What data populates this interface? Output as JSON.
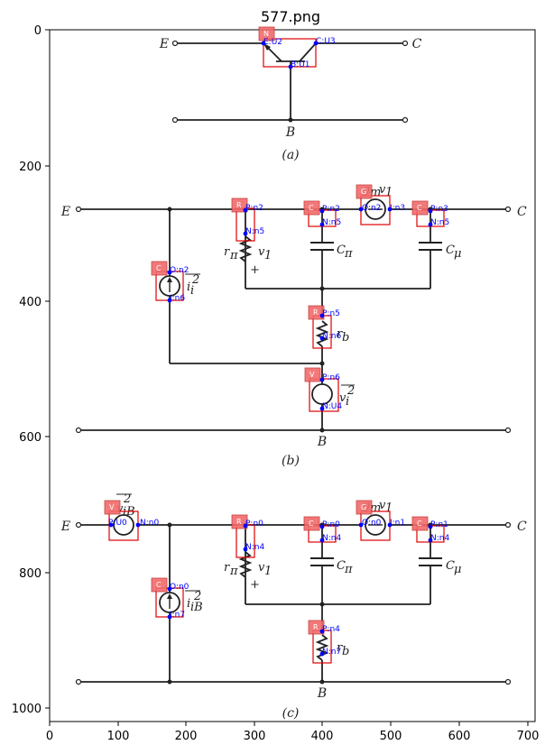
{
  "title": "577.png",
  "x_ticks": [
    "0",
    "100",
    "200",
    "300",
    "400",
    "500",
    "600",
    "700"
  ],
  "y_ticks": [
    "0",
    "200",
    "400",
    "600",
    "800",
    "1000"
  ],
  "sub_a": {
    "E": "E",
    "C": "C",
    "B": "B",
    "cap": "(a)",
    "tag": "N",
    "pins": {
      "e": "E:U2",
      "c": "C:U3",
      "b": "B:U1"
    }
  },
  "sub_b": {
    "E": "E",
    "C": "C",
    "B": "B",
    "cap": "(b)",
    "r_pi": "r",
    "r_pi_sub": "π",
    "v1": "v",
    "v1_sub": "1",
    "plus": "+",
    "c_pi": "C",
    "c_pi_sub": "π",
    "c_mu": "C",
    "c_mu_sub": "μ",
    "gm": "g",
    "gm_sub": "m",
    "gm_v1": "v",
    "gm_v1_sub": "1",
    "ii2": "i",
    "ii2_sub": "i",
    "ii2_sup": "2",
    "rb": "r",
    "rb_sub": "b",
    "vi2": "v",
    "vi2_sub": "i",
    "vi2_sup": "2",
    "tags": {
      "gm": "G",
      "rpi": "R",
      "cpi": "C",
      "cmu": "C",
      "ii": "C",
      "rb": "R",
      "vi": "V"
    },
    "pins": {
      "gm_l": "O:n2",
      "gm_r": "I:n3",
      "rpi_p": "P:n2",
      "rpi_n": "N:n5",
      "cpi_p": "P:n2",
      "cpi_n": "N:n5",
      "cmu_p": "P:n3",
      "cmu_n": "N:n5",
      "ii_o": "O:n2",
      "ii_i": "I:n6",
      "rb_p": "P:n5",
      "rb_n": "N:n6",
      "vi_p": "P:n6",
      "vi_n": "N:U4"
    }
  },
  "sub_c": {
    "E": "E",
    "C": "C",
    "B": "B",
    "cap": "(c)",
    "r_pi": "r",
    "r_pi_sub": "π",
    "v1": "v",
    "v1_sub": "1",
    "plus": "+",
    "c_pi": "C",
    "c_pi_sub": "π",
    "c_mu": "C",
    "c_mu_sub": "μ",
    "gm": "g",
    "gm_sub": "m",
    "gm_v1": "v",
    "gm_v1_sub": "1",
    "viB": "v",
    "viB_sub": "iB",
    "viB_sup": "2",
    "iiB": "i",
    "iiB_sub": "iB",
    "iiB_sup": "2",
    "rb": "r",
    "rb_sub": "b",
    "tags": {
      "vib": "V",
      "gm": "G",
      "rpi": "R",
      "cpi": "C",
      "cmu": "C",
      "iib": "C",
      "rb": "R"
    },
    "pins": {
      "vib_l": "P:U0",
      "vib_r": "N:n0",
      "gm_l": "O:n0",
      "gm_r": "I:n1",
      "rpi_p": "P:n0",
      "rpi_n": "N:n4",
      "cpi_p": "P:n0",
      "cpi_n": "N:n4",
      "cmu_p": "P:n1",
      "cmu_n": "N:n4",
      "iib_o": "O:n0",
      "iib_i": "I:n7",
      "rb_p": "P:n4",
      "rb_n": "N:n7"
    }
  }
}
